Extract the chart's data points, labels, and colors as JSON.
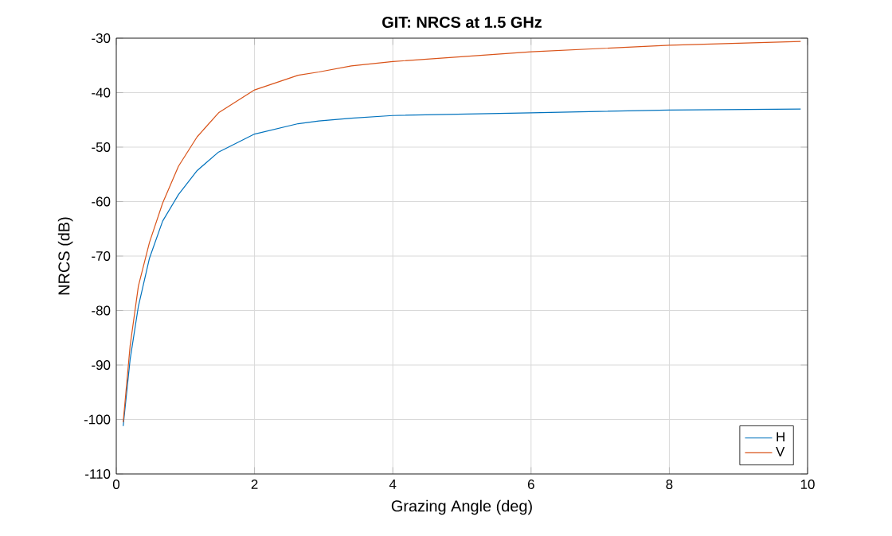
{
  "chart_data": {
    "type": "line",
    "title": "GIT: NRCS at 1.5 GHz",
    "xlabel": "Grazing Angle (deg)",
    "ylabel": "NRCS (dB)",
    "xlim": [
      0,
      10
    ],
    "ylim": [
      -110,
      -30
    ],
    "xticks": [
      0,
      2,
      4,
      6,
      8,
      10
    ],
    "yticks": [
      -110,
      -100,
      -90,
      -80,
      -70,
      -60,
      -50,
      -40,
      -30
    ],
    "grid": true,
    "legend": "bottom right",
    "x": [
      0.1,
      0.2,
      0.32,
      0.48,
      0.67,
      0.9,
      1.17,
      1.48,
      2.0,
      2.63,
      2.93,
      3.4,
      4.0,
      6.0,
      8.0,
      9.9
    ],
    "series": [
      {
        "name": "H",
        "color": "#0072bd",
        "values": [
          -101.2,
          -89,
          -79.2,
          -70.4,
          -63.6,
          -58.7,
          -54.3,
          -50.9,
          -47.6,
          -45.7,
          -45.2,
          -44.7,
          -44.2,
          -43.7,
          -43.2,
          -43.0
        ]
      },
      {
        "name": "V",
        "color": "#d95319",
        "values": [
          -100.5,
          -86.5,
          -75.5,
          -67.5,
          -60.3,
          -53.5,
          -48.1,
          -43.7,
          -39.5,
          -36.8,
          -36.2,
          -35.1,
          -34.3,
          -32.5,
          -31.3,
          -30.6
        ]
      }
    ]
  }
}
